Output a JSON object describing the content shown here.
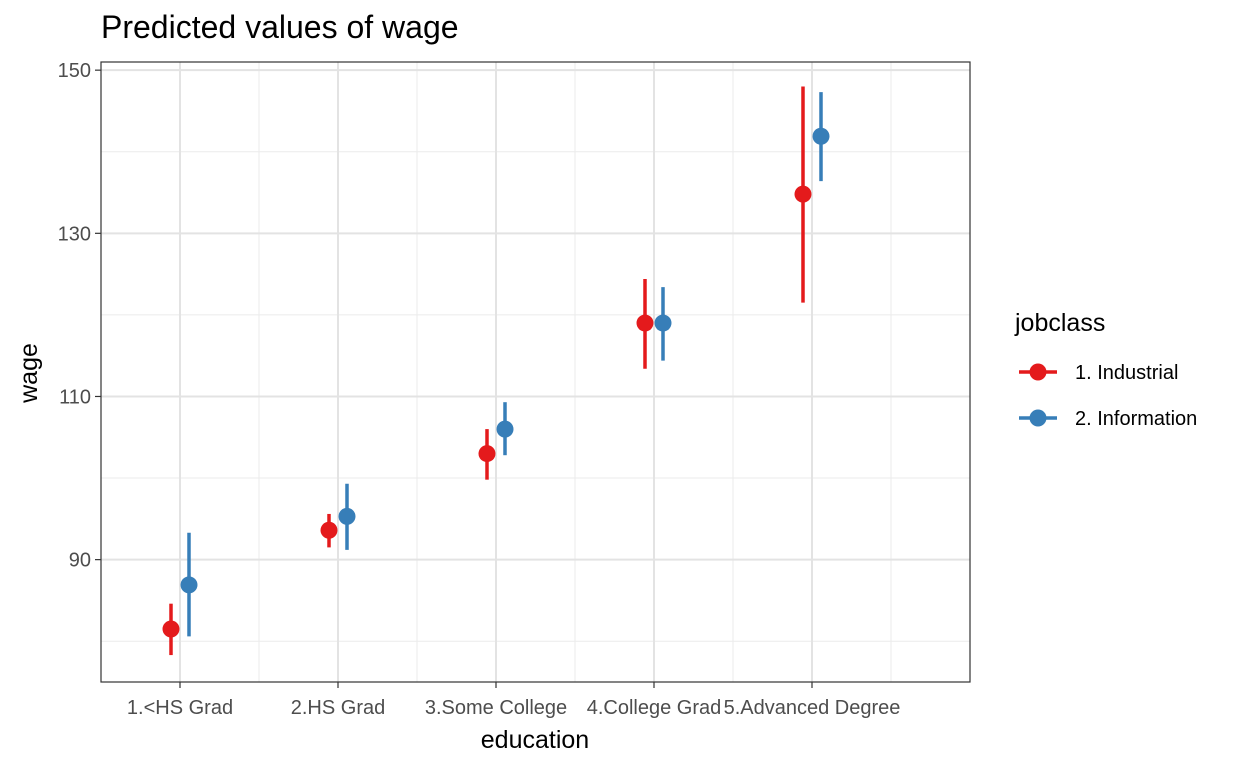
{
  "chart_data": {
    "type": "scatter",
    "title": "Predicted values of wage",
    "xlabel": "education",
    "ylabel": "wage",
    "categories": [
      "1.<HS Grad",
      "2.HS Grad",
      "3.Some College",
      "4.College Grad",
      "5.Advanced Degree"
    ],
    "ylim": [
      75,
      151
    ],
    "yticks": [
      90,
      110,
      130,
      150
    ],
    "grid": true,
    "legend": {
      "title": "jobclass",
      "position": "right"
    },
    "series": [
      {
        "name": "1. Industrial",
        "color": "#E41A1C",
        "values": [
          81.5,
          93.6,
          103.0,
          119.0,
          134.8
        ],
        "lower": [
          78.3,
          91.5,
          99.8,
          113.4,
          121.5
        ],
        "upper": [
          84.6,
          95.6,
          106.0,
          124.4,
          148.0
        ]
      },
      {
        "name": "2. Information",
        "color": "#377EB8",
        "values": [
          86.9,
          95.3,
          106.0,
          119.0,
          141.9
        ],
        "lower": [
          80.6,
          91.2,
          102.8,
          114.4,
          136.4
        ],
        "upper": [
          93.3,
          99.3,
          109.3,
          123.4,
          147.3
        ]
      }
    ]
  }
}
